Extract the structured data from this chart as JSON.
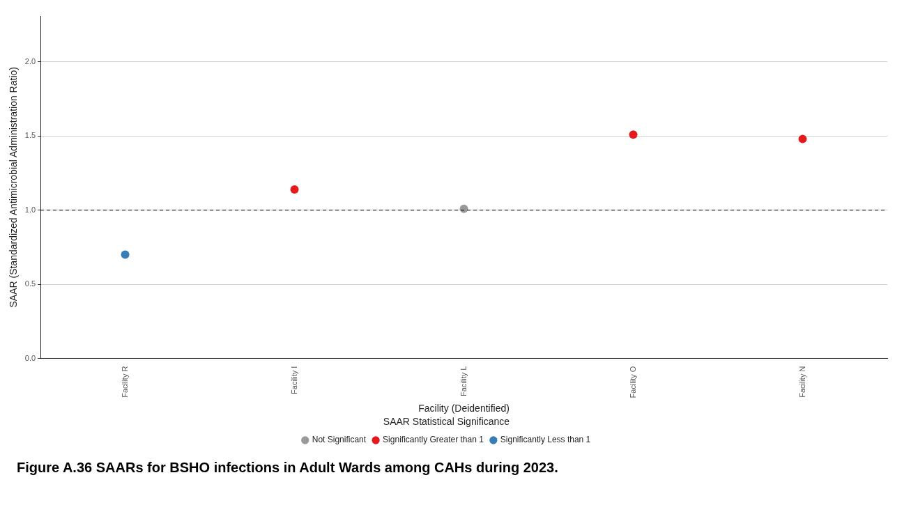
{
  "chart_data": {
    "type": "scatter",
    "xlabel": "Facility (Deidentified)",
    "ylabel": "SAAR (Standardized Antimicrobial Administration Ratio)",
    "legend_title": "SAAR Statistical Significance",
    "categories": [
      "Facility R",
      "Facility I",
      "Facility L",
      "Facility O",
      "Facility N"
    ],
    "series": [
      {
        "name": "Not Significant",
        "color": "#999999",
        "x": [
          "Facility L"
        ],
        "values": [
          1.01
        ]
      },
      {
        "name": "Significantly Greater than 1",
        "color": "#e41a1c",
        "x": [
          "Facility I",
          "Facility O",
          "Facility N"
        ],
        "values": [
          1.14,
          1.51,
          1.48
        ]
      },
      {
        "name": "Significantly Less than 1",
        "color": "#377eb8",
        "x": [
          "Facility R"
        ],
        "values": [
          0.7
        ]
      }
    ],
    "ylim": [
      0,
      2.31
    ],
    "yticks": [
      {
        "value": 0,
        "label": "0.0"
      },
      {
        "value": 0.5,
        "label": "0.5"
      },
      {
        "value": 1,
        "label": "1.0"
      },
      {
        "value": 1.5,
        "label": "1.5"
      },
      {
        "value": 2,
        "label": "2.0"
      }
    ],
    "grid": "y",
    "legend": "bottom",
    "marker": "circle",
    "ref_lines": [
      {
        "axis": "y",
        "value": 1,
        "label": null,
        "color": "#000000",
        "line_style": "dashed"
      }
    ],
    "annotations": [
      "Figure A.36 SAARs for BSHO infections in Adult Wards among CAHs during 2023."
    ]
  }
}
